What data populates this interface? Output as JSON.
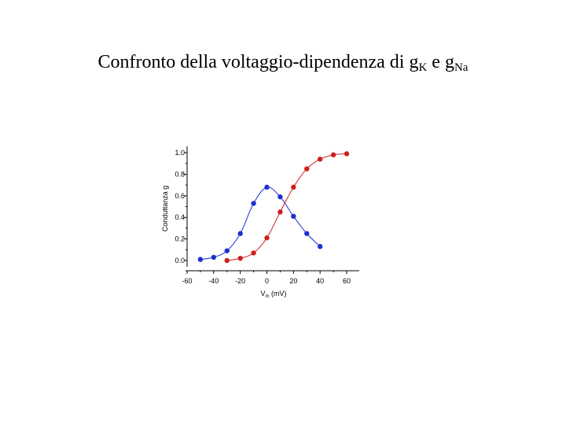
{
  "title": {
    "prefix": "Confronto della voltaggio-dipendenza di g",
    "sub1": "K",
    "middle": " e g",
    "sub2": "Na"
  },
  "chart_data": {
    "type": "line",
    "title": "Confronto della voltaggio-dipendenza di gK e gNa",
    "xlabel_main": "V",
    "xlabel_sub": "m",
    "xlabel_unit": " (mV)",
    "ylabel": "Conduttanza g",
    "xlim": [
      -60,
      60
    ],
    "ylim": [
      0,
      1.0
    ],
    "x_ticks": [
      "-60",
      "-40",
      "-20",
      "0",
      "20",
      "40",
      "60"
    ],
    "y_ticks": [
      "0.0",
      "0.2",
      "0.4",
      "0.6",
      "0.8",
      "1.0"
    ],
    "grid": false,
    "series": [
      {
        "color": "#1f2fd0",
        "x": [
          -50,
          -40,
          -30,
          -20,
          -10,
          0,
          10,
          20,
          30,
          40
        ],
        "y": [
          0.01,
          0.03,
          0.09,
          0.25,
          0.53,
          0.68,
          0.59,
          0.41,
          0.25,
          0.13
        ]
      },
      {
        "color": "#d01f1f",
        "x": [
          -30,
          -20,
          -10,
          0,
          10,
          20,
          30,
          40,
          50,
          60
        ],
        "y": [
          0.0,
          0.02,
          0.07,
          0.21,
          0.45,
          0.68,
          0.85,
          0.94,
          0.98,
          0.99
        ]
      }
    ]
  }
}
